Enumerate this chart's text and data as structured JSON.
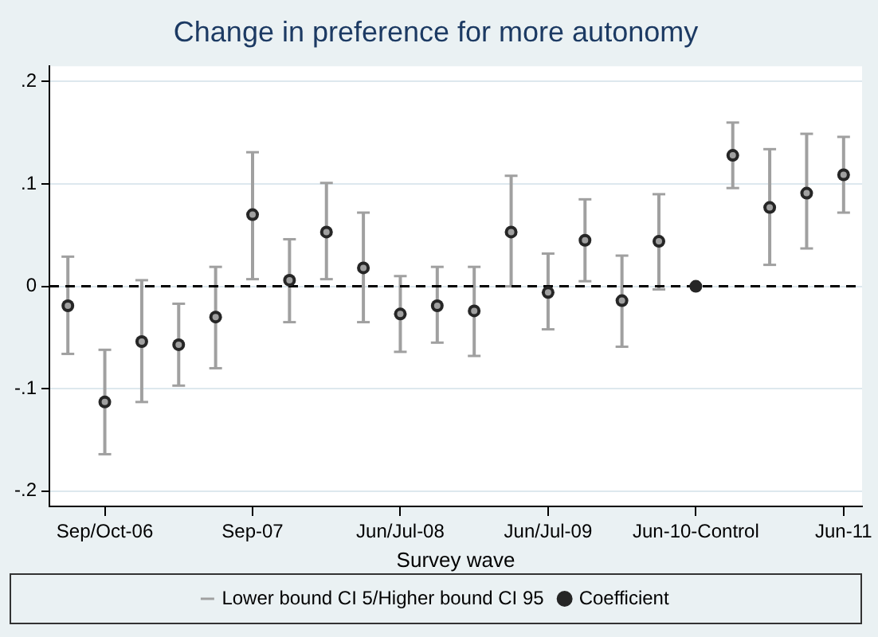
{
  "chart_data": {
    "type": "scatter",
    "title": "Change in preference for more autonomy",
    "xlabel": "Survey wave",
    "categories": [
      null,
      "Sep/Oct-06",
      null,
      null,
      null,
      "Sep-07",
      null,
      null,
      null,
      "Jun/Jul-08",
      null,
      null,
      null,
      "Jun/Jul-09",
      null,
      null,
      null,
      "Jun-10-Control",
      null,
      null,
      null,
      "Jun-11"
    ],
    "series": [
      {
        "name": "Lower bound CI 5/Higher bound CI 95",
        "color": "#a0a0a0",
        "values": [
          -0.019,
          -0.113,
          -0.054,
          -0.057,
          -0.03,
          0.07,
          0.006,
          0.053,
          0.018,
          -0.027,
          -0.019,
          -0.024,
          0.053,
          -0.006,
          0.045,
          -0.014,
          0.044,
          null,
          0.128,
          0.077,
          0.091,
          0.109
        ],
        "errors": [
          [
            -0.066,
            0.029
          ],
          [
            -0.164,
            -0.062
          ],
          [
            -0.113,
            0.006
          ],
          [
            -0.097,
            -0.017
          ],
          [
            -0.08,
            0.019
          ],
          [
            0.007,
            0.131
          ],
          [
            -0.035,
            0.046
          ],
          [
            0.007,
            0.101
          ],
          [
            -0.035,
            0.072
          ],
          [
            -0.064,
            0.01
          ],
          [
            -0.055,
            0.019
          ],
          [
            -0.068,
            0.019
          ],
          [
            0.0,
            0.108
          ],
          [
            -0.042,
            0.032
          ],
          [
            0.005,
            0.085
          ],
          [
            -0.059,
            0.03
          ],
          [
            -0.003,
            0.09
          ],
          null,
          [
            0.096,
            0.16
          ],
          [
            0.021,
            0.134
          ],
          [
            0.037,
            0.149
          ],
          [
            0.072,
            0.146
          ]
        ]
      },
      {
        "name": "Coefficient",
        "color": "#262626",
        "values": [
          -0.019,
          -0.113,
          -0.054,
          -0.057,
          -0.03,
          0.07,
          0.006,
          0.053,
          0.018,
          -0.027,
          -0.019,
          -0.024,
          0.053,
          -0.006,
          0.045,
          -0.014,
          0.044,
          0,
          0.128,
          0.077,
          0.091,
          0.109
        ]
      }
    ],
    "ylim": [
      -0.215,
      0.215
    ],
    "yticks": [
      {
        "value": -0.2,
        "label": "-.2"
      },
      {
        "value": -0.1,
        "label": "-.1"
      },
      0,
      {
        "value": 0.1,
        "label": ".1"
      },
      {
        "value": 0.2,
        "label": ".2"
      }
    ],
    "ref_lines": [
      {
        "axis": "y",
        "value": 0,
        "color": "#000000",
        "line_style": "dashed"
      }
    ],
    "grid": "y",
    "legend": "bottom",
    "marker": "circle"
  }
}
